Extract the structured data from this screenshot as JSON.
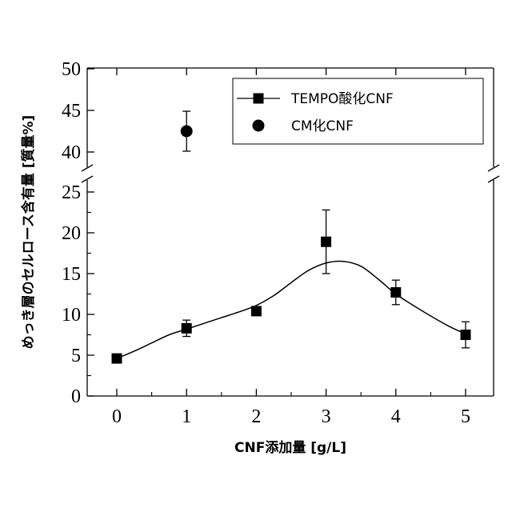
{
  "chart_data": {
    "type": "line",
    "xlabel": "CNF添加量 [g/L]",
    "ylabel": "めっき層のセルロース含有量 [質量%]",
    "xlim": [
      -0.4,
      5.3
    ],
    "ylim_lower": [
      0,
      27
    ],
    "ylim_upper": [
      38,
      50
    ],
    "x_ticks": [
      "0",
      "1",
      "2",
      "3",
      "4",
      "5"
    ],
    "y_ticks_lower": [
      "0",
      "5",
      "10",
      "15",
      "20",
      "25"
    ],
    "y_ticks_upper": [
      "40",
      "45",
      "50"
    ],
    "axis_break": true,
    "grid": false,
    "legend_position": "top-right",
    "series": [
      {
        "name": "TEMPO酸化CNF",
        "marker": "square",
        "line": "smooth-fit",
        "color": "#000000",
        "points": [
          {
            "x": 0,
            "y": 4.6,
            "err": 0
          },
          {
            "x": 1,
            "y": 8.3,
            "err": 1.0
          },
          {
            "x": 2,
            "y": 10.4,
            "err": 0
          },
          {
            "x": 3,
            "y": 18.9,
            "err": 3.9
          },
          {
            "x": 4,
            "y": 12.7,
            "err": 1.5
          },
          {
            "x": 5,
            "y": 7.5,
            "err": 1.6
          }
        ]
      },
      {
        "name": "CM化CNF",
        "marker": "circle",
        "color": "#000000",
        "points": [
          {
            "x": 1,
            "y": 42.5,
            "err": 2.4
          }
        ]
      }
    ],
    "fit_curve": [
      [
        0,
        4.6
      ],
      [
        0.25,
        5.5
      ],
      [
        0.5,
        6.5
      ],
      [
        0.75,
        7.5
      ],
      [
        1,
        8.2
      ],
      [
        1.25,
        8.9
      ],
      [
        1.5,
        9.6
      ],
      [
        1.75,
        10.3
      ],
      [
        2,
        11.1
      ],
      [
        2.25,
        12.3
      ],
      [
        2.5,
        13.9
      ],
      [
        2.75,
        15.4
      ],
      [
        3,
        16.3
      ],
      [
        3.25,
        16.5
      ],
      [
        3.5,
        15.9
      ],
      [
        3.75,
        14.3
      ],
      [
        4,
        12.5
      ],
      [
        4.25,
        11.1
      ],
      [
        4.5,
        9.8
      ],
      [
        4.75,
        8.6
      ],
      [
        5,
        7.6
      ]
    ]
  }
}
